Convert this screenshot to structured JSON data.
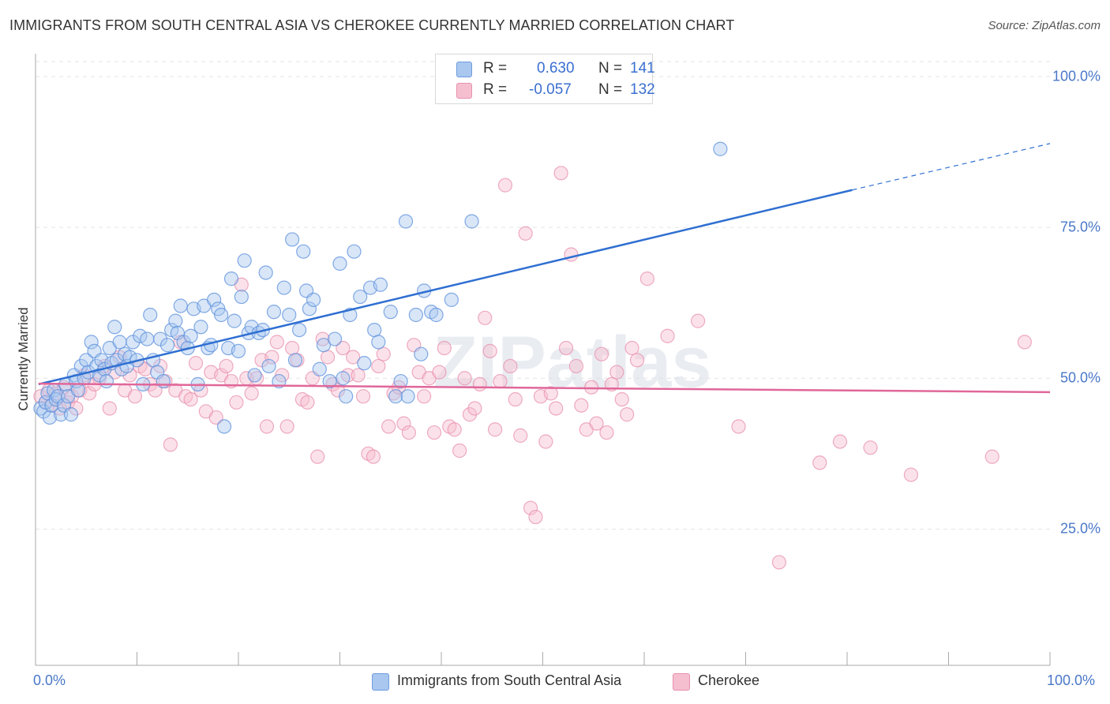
{
  "chart_title": "IMMIGRANTS FROM SOUTH CENTRAL ASIA VS CHEROKEE CURRENTLY MARRIED CORRELATION CHART",
  "source": "Source: ZipAtlas.com",
  "watermark": "ZIPatlas",
  "stats": [
    {
      "r_label": "R =",
      "r": "0.630",
      "n_label": "N =",
      "n": "141",
      "color": "#a9c7ef",
      "border": "#6f9de0"
    },
    {
      "r_label": "R =",
      "r": "-0.057",
      "n_label": "N =",
      "n": "132",
      "color": "#f6bfd0",
      "border": "#e890ad"
    }
  ],
  "y_axis_label": "Currently Married",
  "y_ticks": [
    "100.0%",
    "75.0%",
    "50.0%",
    "25.0%"
  ],
  "x_ticks": [
    "0.0%",
    "100.0%"
  ],
  "legend": [
    {
      "label": "Immigrants from South Central Asia",
      "color": "#a9c7ef",
      "border": "#6f9de0"
    },
    {
      "label": "Cherokee",
      "color": "#f6bfd0",
      "border": "#e890ad"
    }
  ],
  "chart_data": {
    "type": "scatter",
    "x_label": "",
    "y_label": "Currently Married",
    "xlim": [
      0,
      100
    ],
    "ylim": [
      0,
      100
    ],
    "y_ticks_values": [
      100,
      75,
      50,
      25
    ],
    "grid": true,
    "series": [
      {
        "name": "Immigrants from South Central Asia",
        "color": "#5b8fdb",
        "fill": "#a9c7ef",
        "trend": {
          "x0": 0.3,
          "y0": 49.0,
          "x1": 80.5,
          "y1": 81.2,
          "dashed_to_x": 100,
          "dashed_to_y": 88.9
        },
        "points": [
          [
            0.5,
            45.0
          ],
          [
            0.8,
            44.5
          ],
          [
            1.0,
            46.0
          ],
          [
            1.2,
            47.5
          ],
          [
            1.4,
            43.5
          ],
          [
            1.6,
            45.5
          ],
          [
            1.8,
            48.0
          ],
          [
            2.0,
            46.5
          ],
          [
            2.2,
            47.0
          ],
          [
            2.5,
            44.0
          ],
          [
            2.8,
            45.5
          ],
          [
            3.0,
            49.0
          ],
          [
            3.2,
            47.0
          ],
          [
            3.5,
            44.0
          ],
          [
            3.8,
            50.5
          ],
          [
            4.0,
            49.5
          ],
          [
            4.2,
            48.0
          ],
          [
            4.5,
            52.0
          ],
          [
            4.8,
            50.0
          ],
          [
            5.0,
            53.0
          ],
          [
            5.2,
            51.0
          ],
          [
            5.5,
            56.0
          ],
          [
            5.8,
            54.5
          ],
          [
            6.0,
            52.0
          ],
          [
            6.3,
            50.5
          ],
          [
            6.5,
            53.0
          ],
          [
            6.8,
            51.5
          ],
          [
            7.0,
            49.5
          ],
          [
            7.3,
            55.0
          ],
          [
            7.5,
            52.5
          ],
          [
            7.8,
            58.5
          ],
          [
            8.0,
            53.0
          ],
          [
            8.3,
            56.0
          ],
          [
            8.5,
            51.5
          ],
          [
            8.8,
            54.0
          ],
          [
            9.0,
            52.0
          ],
          [
            9.3,
            53.5
          ],
          [
            9.6,
            56.0
          ],
          [
            10.0,
            53.0
          ],
          [
            10.3,
            57.0
          ],
          [
            10.6,
            49.0
          ],
          [
            11.0,
            56.5
          ],
          [
            11.3,
            60.5
          ],
          [
            11.6,
            53.0
          ],
          [
            12.0,
            51.0
          ],
          [
            12.3,
            56.5
          ],
          [
            12.6,
            49.5
          ],
          [
            13.0,
            55.5
          ],
          [
            13.4,
            58.0
          ],
          [
            13.8,
            59.5
          ],
          [
            14.0,
            57.5
          ],
          [
            14.3,
            62.0
          ],
          [
            14.6,
            56.0
          ],
          [
            15.0,
            55.0
          ],
          [
            15.3,
            57.0
          ],
          [
            15.6,
            61.5
          ],
          [
            16.0,
            49.0
          ],
          [
            16.3,
            58.5
          ],
          [
            16.6,
            62.0
          ],
          [
            17.0,
            55.0
          ],
          [
            17.3,
            55.5
          ],
          [
            17.6,
            63.0
          ],
          [
            18.0,
            61.5
          ],
          [
            18.3,
            60.5
          ],
          [
            18.6,
            42.0
          ],
          [
            19.0,
            55.0
          ],
          [
            19.3,
            66.5
          ],
          [
            19.6,
            59.5
          ],
          [
            20.0,
            54.5
          ],
          [
            20.3,
            63.5
          ],
          [
            20.6,
            69.5
          ],
          [
            21.0,
            57.5
          ],
          [
            21.3,
            58.5
          ],
          [
            21.6,
            50.5
          ],
          [
            22.0,
            57.5
          ],
          [
            22.4,
            58.0
          ],
          [
            22.7,
            67.5
          ],
          [
            23.0,
            52.0
          ],
          [
            23.5,
            61.0
          ],
          [
            24.0,
            49.5
          ],
          [
            24.5,
            65.0
          ],
          [
            25.0,
            60.5
          ],
          [
            25.3,
            73.0
          ],
          [
            25.6,
            53.0
          ],
          [
            26.0,
            58.0
          ],
          [
            26.4,
            71.0
          ],
          [
            26.7,
            64.5
          ],
          [
            27.0,
            61.5
          ],
          [
            27.4,
            63.0
          ],
          [
            28.0,
            51.5
          ],
          [
            28.4,
            55.5
          ],
          [
            29.0,
            49.5
          ],
          [
            29.5,
            56.5
          ],
          [
            30.0,
            69.0
          ],
          [
            30.3,
            50.0
          ],
          [
            30.6,
            47.0
          ],
          [
            31.0,
            60.5
          ],
          [
            31.4,
            71.0
          ],
          [
            32.0,
            63.5
          ],
          [
            32.4,
            52.5
          ],
          [
            33.0,
            65.0
          ],
          [
            33.4,
            58.0
          ],
          [
            33.8,
            56.0
          ],
          [
            34.0,
            65.5
          ],
          [
            35.0,
            61.0
          ],
          [
            35.5,
            47.0
          ],
          [
            36.0,
            49.5
          ],
          [
            36.5,
            76.0
          ],
          [
            36.7,
            47.0
          ],
          [
            37.5,
            60.5
          ],
          [
            38.0,
            54.0
          ],
          [
            38.3,
            64.5
          ],
          [
            39.0,
            61.0
          ],
          [
            39.5,
            60.5
          ],
          [
            41.0,
            63.0
          ],
          [
            43.0,
            76.0
          ],
          [
            67.5,
            88.0
          ]
        ]
      },
      {
        "name": "Cherokee",
        "color": "#e890ad",
        "fill": "#f6bfd0",
        "trend": {
          "x0": 0.3,
          "y0": 49.1,
          "x1": 100,
          "y1": 47.7
        },
        "points": [
          [
            0.5,
            47.0
          ],
          [
            1.0,
            46.0
          ],
          [
            1.3,
            48.0
          ],
          [
            1.6,
            45.5
          ],
          [
            2.0,
            47.5
          ],
          [
            2.4,
            45.0
          ],
          [
            2.8,
            48.5
          ],
          [
            3.2,
            46.0
          ],
          [
            3.6,
            47.0
          ],
          [
            4.0,
            45.0
          ],
          [
            4.4,
            48.0
          ],
          [
            4.8,
            50.5
          ],
          [
            5.3,
            47.5
          ],
          [
            5.8,
            49.0
          ],
          [
            6.3,
            50.0
          ],
          [
            6.8,
            52.0
          ],
          [
            7.3,
            45.0
          ],
          [
            7.8,
            51.0
          ],
          [
            8.3,
            53.5
          ],
          [
            8.8,
            48.0
          ],
          [
            9.3,
            50.5
          ],
          [
            9.8,
            47.0
          ],
          [
            10.3,
            52.0
          ],
          [
            10.8,
            51.5
          ],
          [
            11.3,
            49.0
          ],
          [
            11.8,
            48.0
          ],
          [
            12.3,
            52.0
          ],
          [
            12.8,
            49.5
          ],
          [
            13.3,
            39.0
          ],
          [
            13.8,
            48.0
          ],
          [
            14.3,
            56.0
          ],
          [
            14.8,
            47.0
          ],
          [
            15.3,
            46.5
          ],
          [
            15.8,
            52.5
          ],
          [
            16.3,
            48.0
          ],
          [
            16.8,
            44.5
          ],
          [
            17.3,
            51.0
          ],
          [
            17.8,
            43.5
          ],
          [
            18.3,
            50.5
          ],
          [
            18.8,
            52.0
          ],
          [
            19.3,
            49.5
          ],
          [
            19.8,
            46.0
          ],
          [
            20.3,
            65.5
          ],
          [
            20.8,
            50.0
          ],
          [
            21.3,
            47.5
          ],
          [
            21.8,
            50.0
          ],
          [
            22.3,
            53.0
          ],
          [
            22.8,
            42.0
          ],
          [
            23.3,
            53.5
          ],
          [
            23.8,
            56.0
          ],
          [
            24.3,
            50.5
          ],
          [
            24.8,
            42.0
          ],
          [
            25.3,
            55.0
          ],
          [
            25.8,
            53.0
          ],
          [
            26.3,
            46.5
          ],
          [
            26.8,
            46.0
          ],
          [
            27.3,
            50.0
          ],
          [
            27.8,
            37.0
          ],
          [
            28.3,
            56.5
          ],
          [
            28.8,
            53.5
          ],
          [
            29.3,
            49.0
          ],
          [
            29.8,
            48.0
          ],
          [
            30.3,
            55.0
          ],
          [
            30.8,
            50.5
          ],
          [
            31.3,
            53.5
          ],
          [
            31.8,
            50.5
          ],
          [
            32.3,
            47.0
          ],
          [
            32.8,
            37.5
          ],
          [
            33.3,
            37.0
          ],
          [
            33.8,
            52.0
          ],
          [
            34.3,
            54.0
          ],
          [
            34.8,
            42.0
          ],
          [
            35.3,
            47.5
          ],
          [
            35.8,
            48.5
          ],
          [
            36.3,
            42.5
          ],
          [
            36.8,
            41.0
          ],
          [
            37.3,
            55.5
          ],
          [
            37.8,
            51.0
          ],
          [
            38.3,
            47.0
          ],
          [
            38.8,
            50.0
          ],
          [
            39.3,
            41.0
          ],
          [
            39.8,
            51.0
          ],
          [
            40.3,
            55.0
          ],
          [
            40.8,
            42.0
          ],
          [
            41.3,
            41.5
          ],
          [
            41.8,
            38.0
          ],
          [
            42.3,
            50.0
          ],
          [
            42.8,
            44.0
          ],
          [
            43.3,
            45.0
          ],
          [
            43.8,
            49.0
          ],
          [
            44.3,
            60.0
          ],
          [
            44.8,
            54.5
          ],
          [
            45.3,
            41.5
          ],
          [
            45.8,
            49.5
          ],
          [
            46.3,
            82.0
          ],
          [
            46.8,
            52.0
          ],
          [
            47.3,
            46.5
          ],
          [
            47.8,
            40.5
          ],
          [
            48.3,
            74.0
          ],
          [
            48.8,
            28.5
          ],
          [
            49.3,
            27.0
          ],
          [
            49.8,
            47.0
          ],
          [
            50.3,
            39.5
          ],
          [
            50.8,
            47.5
          ],
          [
            51.3,
            45.0
          ],
          [
            51.8,
            84.0
          ],
          [
            52.3,
            55.0
          ],
          [
            52.8,
            70.5
          ],
          [
            53.3,
            52.0
          ],
          [
            53.8,
            45.5
          ],
          [
            54.3,
            41.5
          ],
          [
            54.8,
            48.5
          ],
          [
            55.3,
            42.5
          ],
          [
            55.8,
            54.0
          ],
          [
            56.3,
            41.0
          ],
          [
            56.8,
            49.0
          ],
          [
            57.3,
            51.0
          ],
          [
            57.8,
            46.5
          ],
          [
            58.3,
            44.0
          ],
          [
            58.8,
            55.0
          ],
          [
            59.3,
            53.0
          ],
          [
            60.3,
            66.5
          ],
          [
            62.3,
            57.0
          ],
          [
            65.3,
            59.5
          ],
          [
            69.3,
            42.0
          ],
          [
            73.3,
            19.5
          ],
          [
            77.3,
            36.0
          ],
          [
            79.3,
            39.5
          ],
          [
            82.3,
            38.5
          ],
          [
            86.3,
            34.0
          ],
          [
            94.3,
            37.0
          ],
          [
            97.5,
            56.0
          ]
        ]
      }
    ]
  }
}
